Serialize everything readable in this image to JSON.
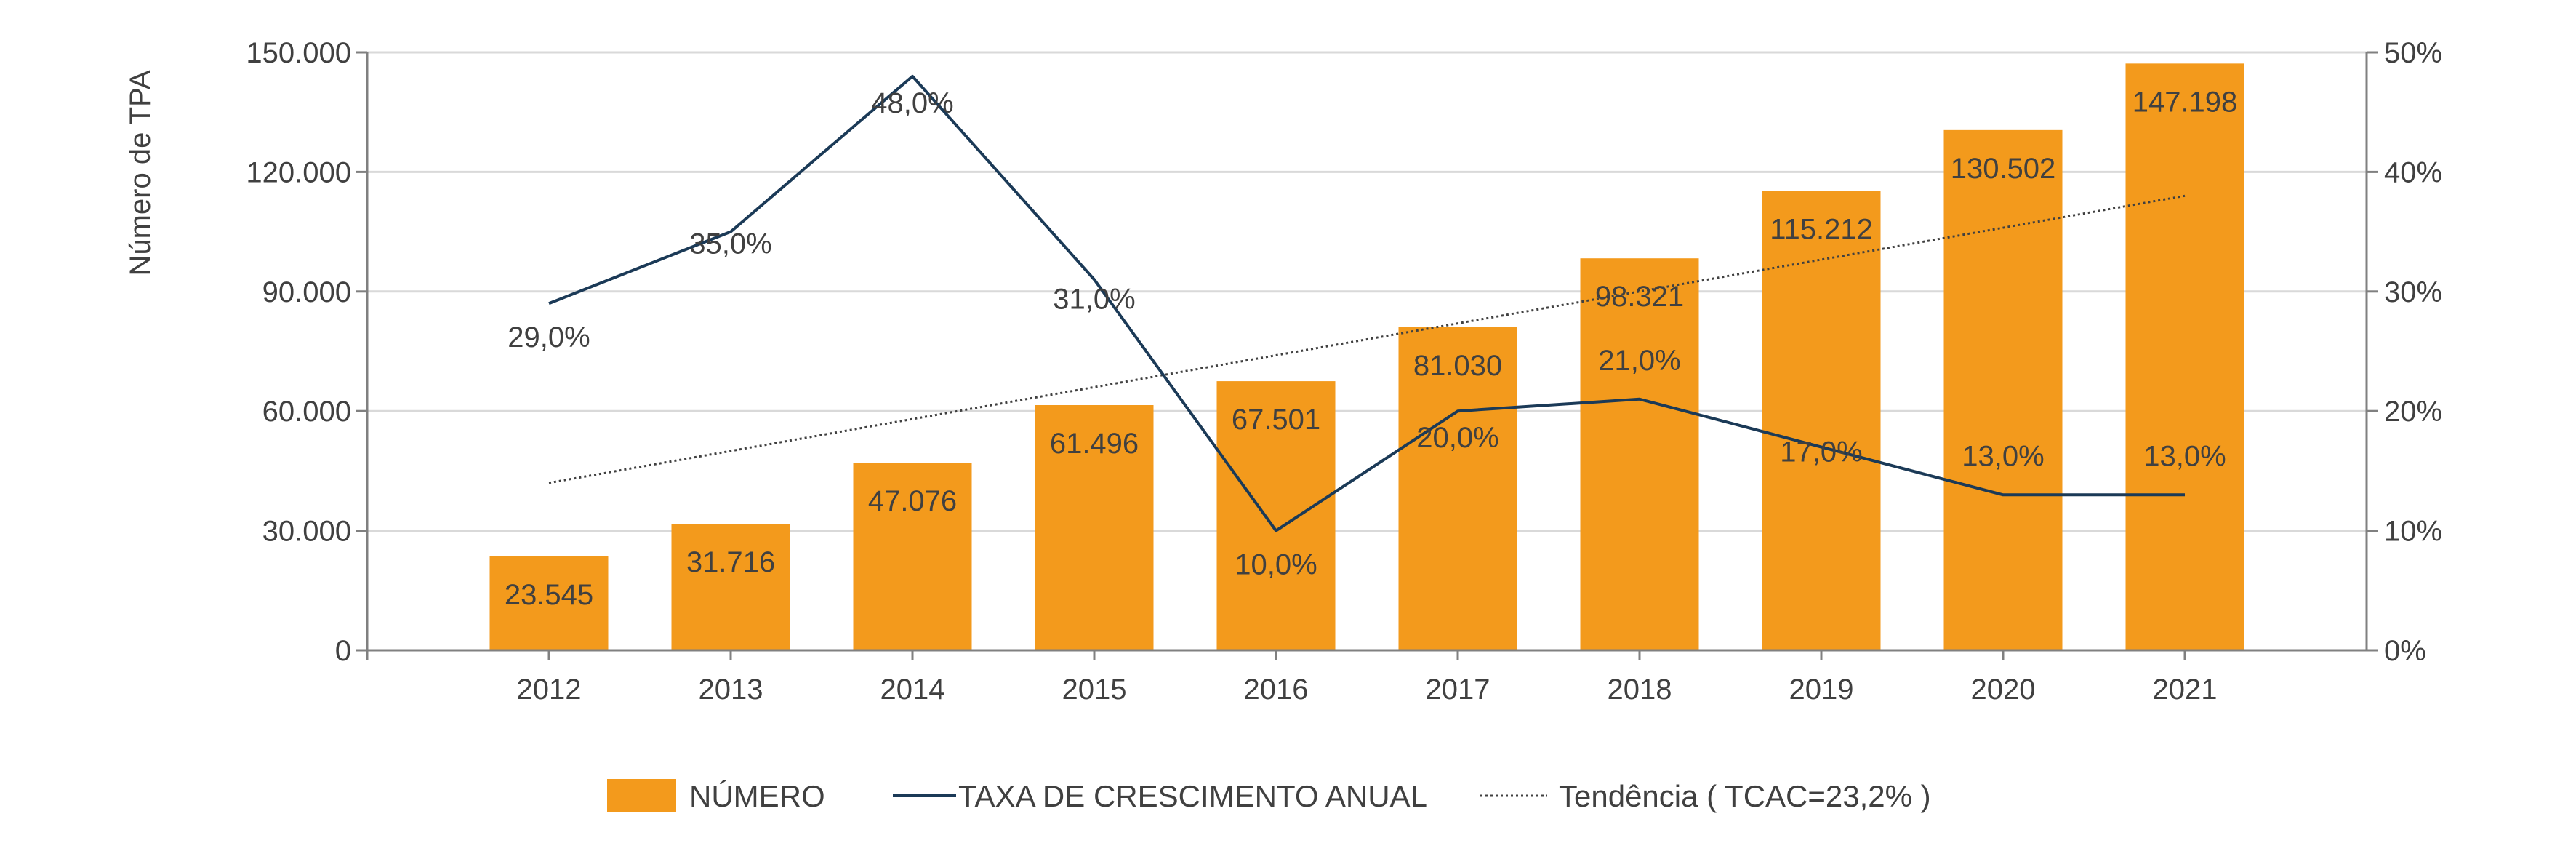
{
  "chart_data": {
    "type": "bar+line",
    "categories": [
      "2012",
      "2013",
      "2014",
      "2015",
      "2016",
      "2017",
      "2018",
      "2019",
      "2020",
      "2021"
    ],
    "bar_series": {
      "name": "NÚMERO",
      "values": [
        23545,
        31716,
        47076,
        61496,
        67501,
        81030,
        98321,
        115212,
        130502,
        147198
      ],
      "labels": [
        "23.545",
        "31.716",
        "47.076",
        "61.496",
        "67.501",
        "81.030",
        "98.321",
        "115.212",
        "130.502",
        "147.198"
      ],
      "color": "#F39A1C"
    },
    "line_series": {
      "name": "TAXA DE CRESCIMENTO ANUAL",
      "values": [
        29,
        35,
        48,
        31,
        10,
        20,
        21,
        17,
        13,
        13
      ],
      "labels": [
        "29,0%",
        "35,0%",
        "48,0%",
        "31,0%",
        "10,0%",
        "20,0%",
        "21,0%",
        "17,0%",
        "13,0%",
        "13,0%"
      ],
      "color": "#1B3A57",
      "axis": "right"
    },
    "trend_series": {
      "name": "Tendência ( TCAC=23,2% )",
      "start": 14,
      "end": 38,
      "color": "#404040",
      "style": "dotted",
      "axis": "right"
    },
    "left_axis": {
      "label": "Número de TPA",
      "ylim": [
        0,
        150000
      ],
      "ticks": [
        0,
        30000,
        60000,
        90000,
        120000,
        150000
      ],
      "tick_labels": [
        "0",
        "30.000",
        "60.000",
        "90.000",
        "120.000",
        "150.000"
      ]
    },
    "right_axis": {
      "ylim": [
        0,
        50
      ],
      "ticks": [
        0,
        10,
        20,
        30,
        40,
        50
      ],
      "tick_labels": [
        "0%",
        "10%",
        "20%",
        "30%",
        "40%",
        "50%"
      ]
    },
    "grid": true,
    "legend_position": "bottom"
  }
}
